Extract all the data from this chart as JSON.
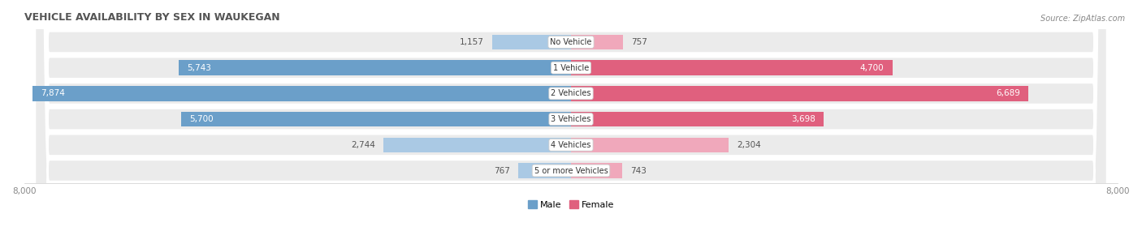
{
  "title": "VEHICLE AVAILABILITY BY SEX IN WAUKEGAN",
  "source": "Source: ZipAtlas.com",
  "categories": [
    "No Vehicle",
    "1 Vehicle",
    "2 Vehicles",
    "3 Vehicles",
    "4 Vehicles",
    "5 or more Vehicles"
  ],
  "male_values": [
    1157,
    5743,
    7874,
    5700,
    2744,
    767
  ],
  "female_values": [
    757,
    4700,
    6689,
    3698,
    2304,
    743
  ],
  "male_color_dark": "#6b9fc9",
  "male_color_light": "#aac9e4",
  "female_color_dark": "#e0607e",
  "female_color_light": "#f0a8bb",
  "male_label": "Male",
  "female_label": "Female",
  "xlim": 8000,
  "bar_height": 0.58,
  "row_bg_color": "#ebebeb",
  "title_fontsize": 9,
  "source_fontsize": 7,
  "label_fontsize": 7.5,
  "category_fontsize": 7,
  "tick_fontsize": 7.5,
  "legend_fontsize": 8,
  "male_threshold": 3000,
  "female_threshold": 3000
}
